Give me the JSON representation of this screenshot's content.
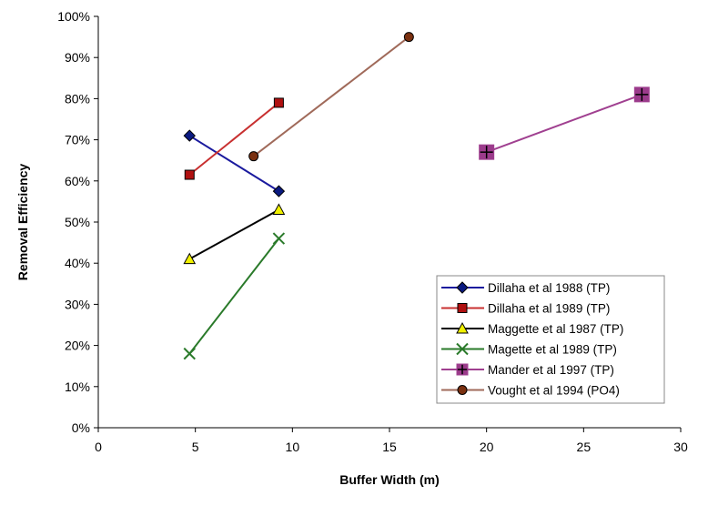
{
  "chart_data": {
    "type": "line",
    "title": "",
    "xlabel": "Buffer Width  (m)",
    "ylabel": "Removal  Efficiency",
    "xlim": [
      0,
      30
    ],
    "ylim": [
      0,
      100
    ],
    "x_ticks": [
      "0",
      "5",
      "10",
      "15",
      "20",
      "25",
      "30"
    ],
    "x_tick_values": [
      0,
      5,
      10,
      15,
      20,
      25,
      30
    ],
    "y_ticks": [
      "0%",
      "10%",
      "20%",
      "30%",
      "40%",
      "50%",
      "60%",
      "70%",
      "80%",
      "90%",
      "100%"
    ],
    "y_tick_values": [
      0,
      10,
      20,
      30,
      40,
      50,
      60,
      70,
      80,
      90,
      100
    ],
    "grid": false,
    "legend_position": "bottom-right",
    "series": [
      {
        "name": "Dillaha et al 1988 (TP)",
        "x": [
          4.7,
          9.3
        ],
        "y": [
          71,
          57.5
        ],
        "color": "#1a1a9e",
        "marker": "diamond",
        "marker_color": "#0a1a80"
      },
      {
        "name": "Dillaha et al 1989  (TP)",
        "x": [
          4.7,
          9.3
        ],
        "y": [
          61.5,
          79
        ],
        "color": "#c83030",
        "marker": "square",
        "marker_color": "#b01010"
      },
      {
        "name": "Maggette et al 1987 (TP)",
        "x": [
          4.7,
          9.3
        ],
        "y": [
          41,
          53
        ],
        "color": "#000000",
        "marker": "triangle",
        "marker_color": "#f0f000"
      },
      {
        "name": "Magette et al 1989 (TP)",
        "x": [
          4.7,
          9.3
        ],
        "y": [
          18,
          46
        ],
        "color": "#2a7a2a",
        "marker": "x",
        "marker_color": "#2a7a2a"
      },
      {
        "name": "Mander et al 1997  (TP)",
        "x": [
          20,
          28
        ],
        "y": [
          67,
          81
        ],
        "color": "#a04090",
        "marker": "plus-square",
        "marker_color": "#9b3b8b"
      },
      {
        "name": "Vought et al 1994 (PO4)",
        "x": [
          8,
          16
        ],
        "y": [
          66,
          95
        ],
        "color": "#a06a5a",
        "marker": "circle",
        "marker_color": "#7a3010"
      }
    ]
  }
}
